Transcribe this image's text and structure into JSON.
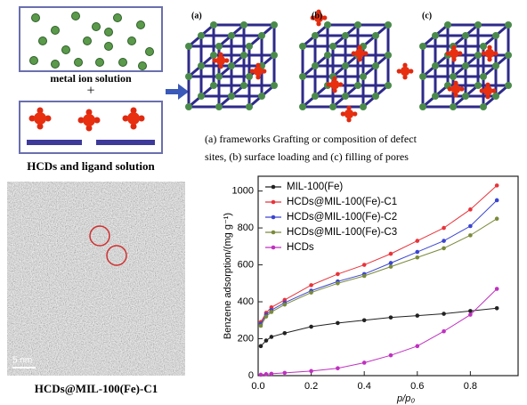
{
  "schematic": {
    "metal_label": "metal ion solution",
    "plus": "+",
    "ligand_label": "HCDs and ligand solution",
    "panel_labels": [
      "(a)",
      "(b)",
      "(c)"
    ],
    "caption": [
      "(a) frameworks Grafting or composition of defect",
      "sites, (b) surface loading and (c) filling of pores"
    ]
  },
  "tem": {
    "scale": "5 nm",
    "label": "HCDs@MIL-100(Fe)-C1"
  },
  "chart_data": {
    "type": "line",
    "x_label": "p/p₀",
    "y_label": "Benzene adsorption/(mg g⁻¹)",
    "x": [
      0.01,
      0.03,
      0.05,
      0.1,
      0.2,
      0.3,
      0.4,
      0.5,
      0.6,
      0.7,
      0.8,
      0.9
    ],
    "series": [
      {
        "name": "MIL-100(Fe)",
        "color": "#222222",
        "values": [
          160,
          190,
          210,
          230,
          265,
          285,
          300,
          315,
          325,
          335,
          350,
          365
        ]
      },
      {
        "name": "HCDs@MIL-100(Fe)-C1",
        "color": "#e8333a",
        "values": [
          290,
          340,
          370,
          410,
          490,
          550,
          600,
          660,
          730,
          800,
          900,
          1030
        ]
      },
      {
        "name": "HCDs@MIL-100(Fe)-C2",
        "color": "#3a45d0",
        "values": [
          280,
          330,
          355,
          395,
          460,
          510,
          550,
          610,
          670,
          730,
          810,
          950
        ]
      },
      {
        "name": "HCDs@MIL-100(Fe)-C3",
        "color": "#7a8a3a",
        "values": [
          270,
          320,
          345,
          385,
          450,
          500,
          540,
          590,
          640,
          690,
          760,
          850
        ]
      },
      {
        "name": "HCDs",
        "color": "#c030c0",
        "values": [
          5,
          8,
          10,
          15,
          25,
          40,
          70,
          110,
          160,
          240,
          330,
          470
        ]
      }
    ],
    "xlim": [
      0,
      0.98
    ],
    "xticks": [
      {
        "value": 0,
        "label": "0.0"
      },
      {
        "value": 0.2,
        "label": "0.2"
      },
      {
        "value": 0.4,
        "label": "0.4"
      },
      {
        "value": 0.6,
        "label": "0.6"
      },
      {
        "value": 0.8,
        "label": "0.8"
      }
    ],
    "ylim": [
      0,
      1080
    ],
    "yticks": [
      0,
      200,
      400,
      600,
      800,
      1000
    ],
    "legend": "upper left"
  }
}
